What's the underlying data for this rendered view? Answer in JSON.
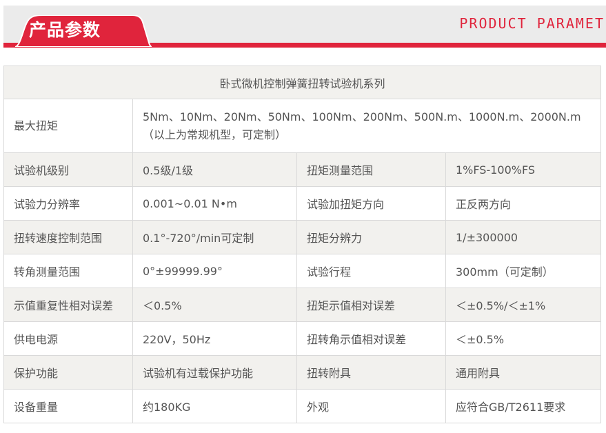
{
  "header": {
    "title": "产品参数",
    "subtitle_en": "PRODUCT PARAMET",
    "accent_color": "#e0243c"
  },
  "table": {
    "title": "卧式微机控制弹簧扭转试验机系列",
    "max_torque": {
      "label": "最大扭矩",
      "value": "5Nm、10Nm、20Nm、50Nm、100Nm、200Nm、500N.m、1000N.m、2000N.m",
      "note": "（以上为常规机型，可定制）"
    },
    "rows": [
      {
        "k1": "试验机级别",
        "v1": "0.5级/1级",
        "k2": "扭矩测量范围",
        "v2": "1%FS-100%FS"
      },
      {
        "k1": "试验力分辨率",
        "v1": "0.001~0.01 N•m",
        "k2": "试验加扭矩方向",
        "v2": "正反两方向"
      },
      {
        "k1": "扭转速度控制范围",
        "v1": "0.1°-720°/min可定制",
        "k2": "扭矩分辨力",
        "v2": "1/±300000"
      },
      {
        "k1": "转角测量范围",
        "v1": "0°±99999.99°",
        "k2": "试验行程",
        "v2": "300mm（可定制）"
      },
      {
        "k1": "示值重复性相对误差",
        "v1": "＜0.5%",
        "k2": "扭矩示值相对误差",
        "v2": "＜±0.5%/＜±1%"
      },
      {
        "k1": "供电电源",
        "v1": "220V，50Hz",
        "k2": "扭转角示值相对误差",
        "v2": "＜±0.5%"
      },
      {
        "k1": "保护功能",
        "v1": "试验机有过载保护功能",
        "k2": "扭转附具",
        "v2": "通用附具"
      },
      {
        "k1": "设备重量",
        "v1": "约180KG",
        "k2": "外观",
        "v2": "应符合GB/T2611要求"
      }
    ]
  }
}
